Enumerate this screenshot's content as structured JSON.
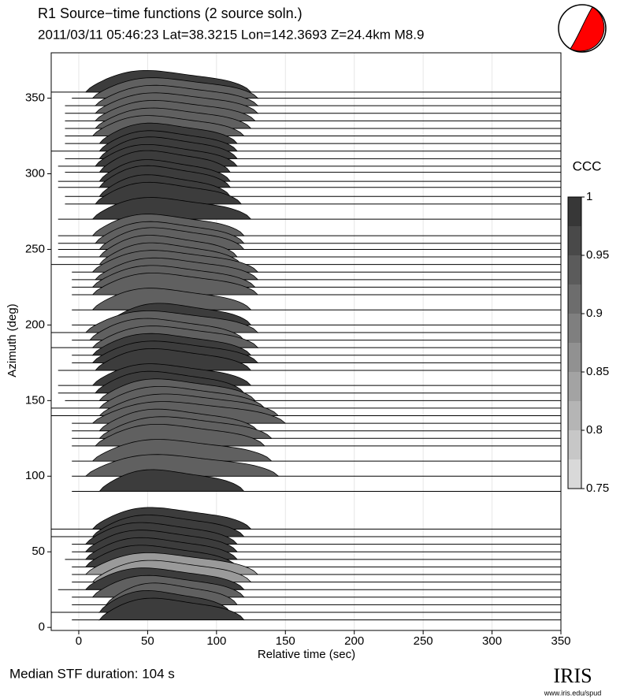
{
  "chart_data": {
    "type": "stf",
    "title": "R1 Source−time functions (2 source soln.)",
    "subtitle": "2011/03/11 05:46:23  Lat=38.3215 Lon=142.3693  Z=24.4km  M8.9",
    "x_label": "Relative time (sec)",
    "y_label": "Azimuth (deg)",
    "xlim": [
      -20,
      350
    ],
    "ylim": [
      -2,
      380
    ],
    "xticks": [
      0,
      50,
      100,
      150,
      200,
      250,
      300,
      350
    ],
    "yticks": [
      0,
      50,
      100,
      150,
      200,
      250,
      300,
      350
    ],
    "grid": true,
    "colorbar_label": "CCC",
    "clim": [
      0.75,
      1
    ],
    "cticks": [
      0.75,
      0.8,
      0.85,
      0.9,
      0.95,
      1
    ],
    "colormap": [
      "#e2e2e2",
      "#2e2e2e"
    ],
    "traces": {
      "azimuth": [
        354,
        350,
        345,
        340,
        335,
        330,
        325,
        320,
        315,
        310,
        305,
        301,
        295,
        291,
        285,
        280,
        270,
        259,
        254,
        250,
        245,
        240,
        235,
        230,
        225,
        220,
        210,
        200,
        195,
        190,
        185,
        180,
        175,
        170,
        160,
        155,
        150,
        145,
        140,
        135,
        130,
        125,
        120,
        110,
        100,
        90,
        65,
        60,
        55,
        50,
        45,
        40,
        35,
        30,
        25,
        20,
        15,
        10,
        5
      ],
      "start": [
        -20,
        -5,
        -10,
        -10,
        -10,
        -10,
        -10,
        -10,
        -20,
        -10,
        -15,
        -10,
        -15,
        -15,
        -10,
        -10,
        -15,
        -15,
        -15,
        -15,
        -15,
        -20,
        -5,
        -5,
        -5,
        -5,
        -5,
        -5,
        -20,
        -5,
        -20,
        -5,
        -5,
        -15,
        -15,
        -15,
        -10,
        -20,
        -20,
        -5,
        -5,
        -5,
        -5,
        -5,
        -5,
        -5,
        -20,
        -20,
        -5,
        -5,
        -10,
        -5,
        -5,
        -5,
        -15,
        -5,
        -5,
        -20,
        -5
      ],
      "onset": [
        5,
        10,
        12,
        12,
        12,
        12,
        10,
        15,
        15,
        15,
        12,
        15,
        15,
        15,
        15,
        12,
        10,
        10,
        12,
        15,
        15,
        15,
        10,
        12,
        10,
        10,
        10,
        20,
        5,
        8,
        10,
        10,
        10,
        12,
        10,
        12,
        15,
        15,
        15,
        10,
        15,
        15,
        12,
        10,
        5,
        15,
        10,
        10,
        5,
        5,
        5,
        5,
        5,
        10,
        5,
        10,
        20,
        15,
        15
      ],
      "end": [
        125,
        130,
        130,
        130,
        128,
        125,
        120,
        115,
        115,
        115,
        115,
        110,
        110,
        110,
        110,
        118,
        125,
        120,
        120,
        120,
        115,
        118,
        130,
        130,
        128,
        130,
        125,
        125,
        130,
        120,
        130,
        125,
        130,
        125,
        125,
        120,
        128,
        135,
        145,
        150,
        130,
        140,
        135,
        140,
        145,
        120,
        125,
        120,
        115,
        115,
        115,
        115,
        130,
        125,
        120,
        120,
        115,
        110,
        120
      ],
      "amp": [
        17,
        16,
        16,
        16,
        16,
        16,
        16,
        16,
        16,
        17,
        17,
        17,
        17,
        17,
        17,
        17,
        17,
        17,
        17,
        17,
        17,
        17,
        17,
        17,
        17,
        17,
        17,
        17,
        17,
        17,
        17,
        17,
        17,
        17,
        17,
        17,
        17,
        17,
        17,
        17,
        17,
        17,
        17,
        17,
        17,
        17,
        17,
        17,
        17,
        17,
        17,
        17,
        17,
        17,
        17,
        17,
        17,
        17,
        17
      ],
      "ccc": [
        0.98,
        0.93,
        0.93,
        0.93,
        0.93,
        0.93,
        0.93,
        0.98,
        0.98,
        0.98,
        0.98,
        0.98,
        0.98,
        0.98,
        0.98,
        0.98,
        0.98,
        0.93,
        0.93,
        0.93,
        0.93,
        0.93,
        0.93,
        0.93,
        0.93,
        0.93,
        0.93,
        0.98,
        0.93,
        0.93,
        0.93,
        0.98,
        0.98,
        0.98,
        0.98,
        0.98,
        0.93,
        0.93,
        0.93,
        0.93,
        0.93,
        0.93,
        0.93,
        0.93,
        0.93,
        0.98,
        0.98,
        0.98,
        0.98,
        0.98,
        0.98,
        0.98,
        0.85,
        0.85,
        0.98,
        0.93,
        0.93,
        0.98,
        0.98
      ]
    },
    "footer": "Median STF duration: 104 s",
    "logo": "IRIS",
    "logo_url": "www.iris.edu/spud"
  }
}
